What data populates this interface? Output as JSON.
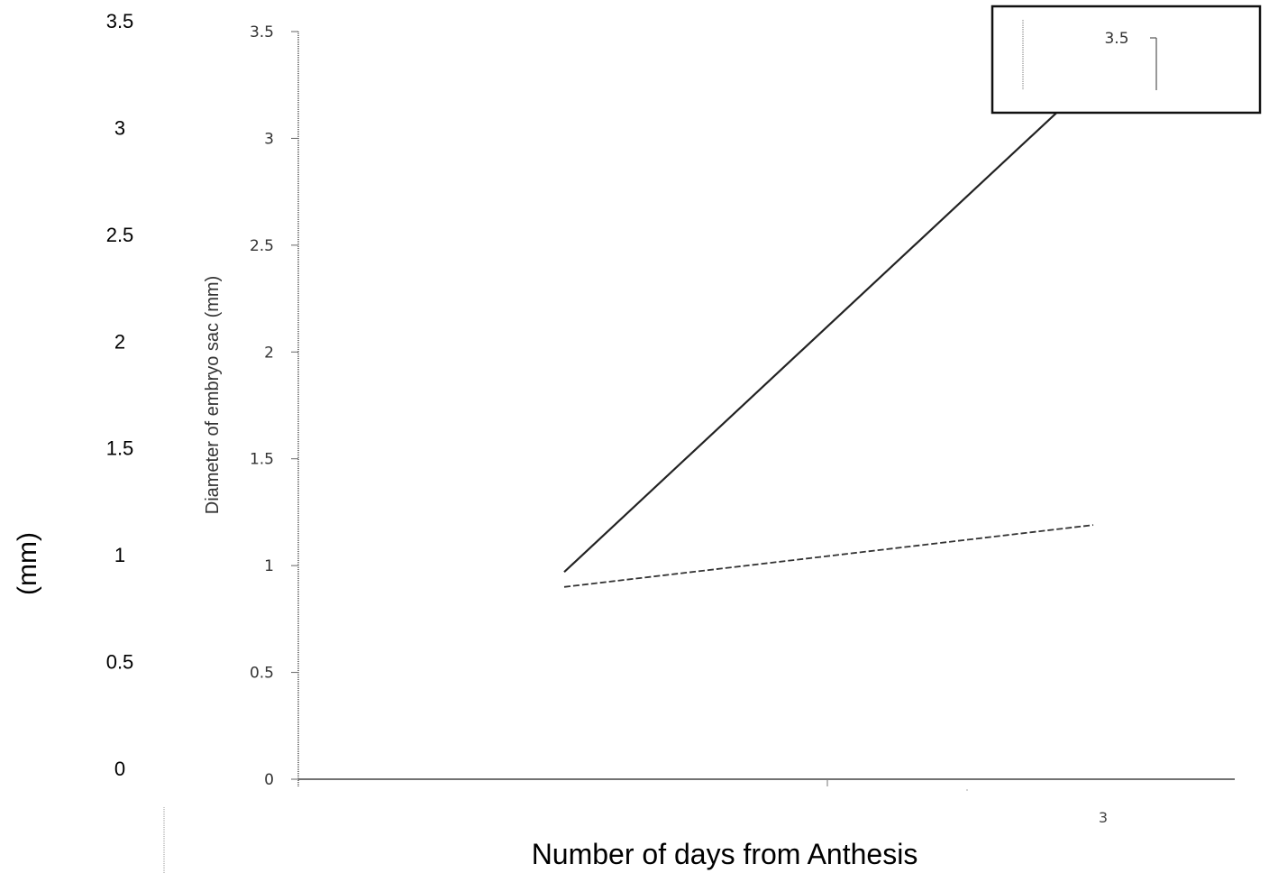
{
  "chart_data": {
    "type": "line",
    "title": "",
    "xlabel": "Number of days from Anthesis",
    "ylabel": "Diameter of embryo sac (mm)",
    "ylabel_outer": "(mm)",
    "ylim": [
      0,
      3.5
    ],
    "yticks": [
      "0",
      "0.5",
      "1",
      "1.5",
      "2",
      "2.5",
      "3",
      "3.5"
    ],
    "xlim": [
      0,
      3.5
    ],
    "xticks": [
      "",
      "",
      "3"
    ],
    "grid": false,
    "legend": "none",
    "inset": {
      "label": "3.5"
    },
    "series": [
      {
        "style": "solid",
        "color": "#222222",
        "x": [
          1,
          3
        ],
        "y": [
          0.97,
          3.28
        ]
      },
      {
        "style": "dashed",
        "color": "#333333",
        "x": [
          1,
          3
        ],
        "y": [
          0.9,
          1.19
        ]
      }
    ]
  }
}
